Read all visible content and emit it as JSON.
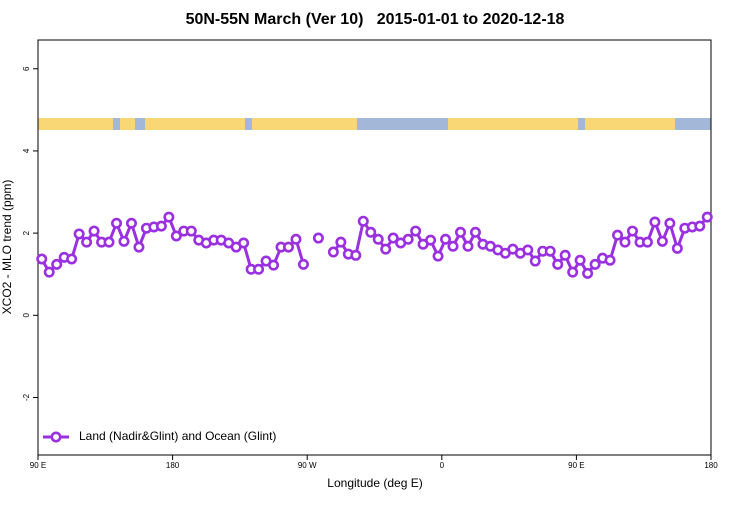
{
  "chart_data": {
    "type": "line",
    "title": "50N-55N March (Ver 10)   2015-01-01 to 2020-12-18",
    "x_label": "Longitude (deg E)",
    "y_label": "XCO2 - MLO trend (ppm)",
    "xlim": [
      90,
      540
    ],
    "ylim": [
      -3.4,
      6.7
    ],
    "xticks": [
      {
        "value": 90,
        "label": "90 E"
      },
      180,
      {
        "value": 270,
        "label": "90 W"
      },
      {
        "value": 360,
        "label": "0"
      },
      {
        "value": 450,
        "label": "90 E"
      },
      {
        "value": 540,
        "label": "180"
      }
    ],
    "yticks": [
      -2,
      0,
      2,
      4,
      6
    ],
    "legend": "bottom-left",
    "x": [
      92.5,
      97.5,
      102.5,
      107.5,
      112.5,
      117.5,
      122.5,
      127.5,
      132.5,
      137.5,
      142.5,
      147.5,
      152.5,
      157.5,
      162.5,
      167.5,
      172.5,
      177.5,
      182.5,
      187.5,
      192.5,
      197.5,
      202.5,
      207.5,
      212.5,
      217.5,
      222.5,
      227.5,
      232.5,
      237.5,
      242.5,
      247.5,
      252.5,
      257.5,
      262.5,
      267.5,
      272.5,
      277.5,
      282.5,
      287.5,
      292.5,
      297.5,
      302.5,
      307.5,
      312.5,
      317.5,
      322.5,
      327.5,
      332.5,
      337.5,
      342.5,
      347.5,
      352.5,
      357.5,
      362.5,
      367.5,
      372.5,
      377.5,
      382.5,
      387.5,
      392.5,
      397.5,
      402.5,
      407.5,
      412.5,
      417.5,
      422.5,
      427.5,
      432.5,
      437.5,
      442.5,
      447.5,
      452.5,
      457.5,
      462.5,
      467.5,
      472.5,
      477.5,
      482.5,
      487.5,
      492.5,
      497.5,
      502.5,
      507.5,
      512.5,
      517.5,
      522.5,
      527.5,
      532.5,
      537.5
    ],
    "series": [
      {
        "name": "Land (Nadir&Glint) and Ocean (Glint)",
        "color": "#9b30e0",
        "values": [
          1.37,
          1.05,
          1.24,
          1.41,
          1.37,
          1.98,
          1.78,
          2.05,
          1.78,
          1.78,
          2.24,
          1.8,
          2.24,
          1.66,
          2.12,
          2.15,
          2.17,
          2.39,
          1.93,
          2.05,
          2.05,
          1.83,
          1.76,
          1.83,
          1.83,
          1.76,
          1.66,
          1.76,
          1.12,
          1.12,
          1.32,
          1.22,
          1.66,
          1.66,
          1.85,
          1.24,
          null,
          1.88,
          null,
          1.54,
          1.78,
          1.49,
          1.46,
          2.29,
          2.02,
          1.85,
          1.61,
          1.88,
          1.76,
          1.85,
          2.05,
          1.73,
          1.83,
          1.44,
          1.85,
          1.68,
          2.02,
          1.68,
          2.02,
          1.73,
          1.68,
          1.59,
          1.51,
          1.61,
          1.51,
          1.59,
          1.32,
          1.56,
          1.56,
          1.24,
          1.46,
          1.05,
          1.34,
          1.02,
          1.24,
          1.39,
          1.34,
          1.95,
          1.78,
          2.05,
          1.78,
          1.78,
          2.27,
          1.8,
          2.24,
          1.63,
          2.12,
          2.15,
          2.17,
          2.39
        ]
      }
    ]
  }
}
